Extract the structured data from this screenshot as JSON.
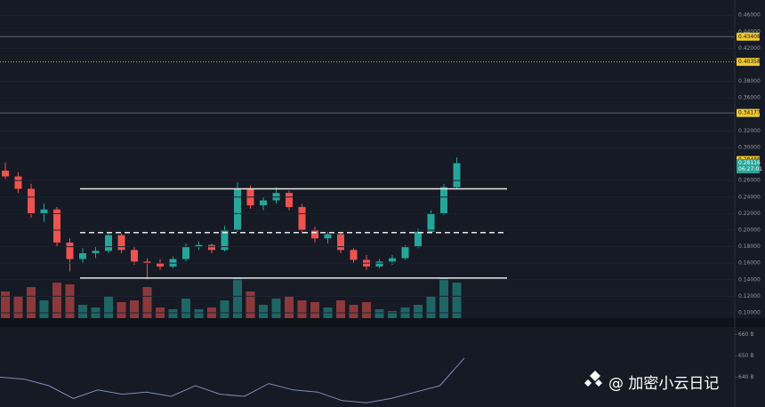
{
  "chart_data": {
    "type": "candlestick",
    "ylim": [
      0.0935,
      0.4785
    ],
    "yticks": [
      {
        "value": 0.46,
        "label": "0.46000"
      },
      {
        "value": 0.44,
        "label": "0.44000"
      },
      {
        "value": 0.42,
        "label": "0.42000"
      },
      {
        "value": 0.38,
        "label": "0.38000"
      },
      {
        "value": 0.36,
        "label": "0.36000"
      },
      {
        "value": 0.32,
        "label": "0.32000"
      },
      {
        "value": 0.3,
        "label": "0.30000"
      },
      {
        "value": 0.26,
        "label": "0.26000"
      },
      {
        "value": 0.24,
        "label": "0.24000"
      },
      {
        "value": 0.22,
        "label": "0.22000"
      },
      {
        "value": 0.2,
        "label": "0.20000"
      },
      {
        "value": 0.18,
        "label": "0.18000"
      },
      {
        "value": 0.16,
        "label": "0.16000"
      },
      {
        "value": 0.14,
        "label": "0.14000"
      },
      {
        "value": 0.12,
        "label": "0.12000"
      },
      {
        "value": 0.1,
        "label": "0.10000"
      }
    ],
    "grid": true,
    "up_color": "#26a69a",
    "down_color": "#ef5350",
    "open": [
      0.272,
      0.265,
      0.25,
      0.22,
      0.225,
      0.185,
      0.165,
      0.172,
      0.175,
      0.194,
      0.176,
      0.162,
      0.16,
      0.156,
      0.165,
      0.18,
      0.182,
      0.176,
      0.2,
      0.25,
      0.23,
      0.236,
      0.245,
      0.228,
      0.2,
      0.19,
      0.195,
      0.176,
      0.164,
      0.156,
      0.162,
      0.166,
      0.18,
      0.198,
      0.22,
      0.252
    ],
    "high": [
      0.282,
      0.27,
      0.256,
      0.232,
      0.228,
      0.19,
      0.178,
      0.18,
      0.198,
      0.196,
      0.18,
      0.166,
      0.165,
      0.168,
      0.184,
      0.186,
      0.184,
      0.205,
      0.258,
      0.254,
      0.24,
      0.252,
      0.248,
      0.232,
      0.204,
      0.198,
      0.197,
      0.178,
      0.17,
      0.165,
      0.17,
      0.182,
      0.202,
      0.224,
      0.256,
      0.288
    ],
    "low": [
      0.262,
      0.245,
      0.215,
      0.21,
      0.18,
      0.15,
      0.16,
      0.166,
      0.172,
      0.172,
      0.158,
      0.14,
      0.152,
      0.154,
      0.162,
      0.176,
      0.172,
      0.174,
      0.198,
      0.226,
      0.224,
      0.232,
      0.224,
      0.196,
      0.185,
      0.184,
      0.172,
      0.16,
      0.152,
      0.154,
      0.158,
      0.164,
      0.178,
      0.196,
      0.218,
      0.25
    ],
    "close": [
      0.265,
      0.25,
      0.22,
      0.225,
      0.185,
      0.165,
      0.172,
      0.175,
      0.194,
      0.176,
      0.162,
      0.16,
      0.156,
      0.165,
      0.18,
      0.182,
      0.176,
      0.2,
      0.25,
      0.23,
      0.236,
      0.245,
      0.228,
      0.2,
      0.19,
      0.195,
      0.176,
      0.164,
      0.156,
      0.162,
      0.166,
      0.18,
      0.198,
      0.22,
      0.252,
      0.281
    ],
    "volume": [
      30,
      25,
      35,
      20,
      40,
      38,
      15,
      12,
      25,
      18,
      20,
      35,
      12,
      10,
      22,
      10,
      12,
      20,
      45,
      30,
      15,
      22,
      25,
      20,
      18,
      12,
      20,
      15,
      18,
      10,
      8,
      12,
      15,
      25,
      45,
      40
    ],
    "levels": [
      {
        "value": 0.25,
        "style": "solid"
      },
      {
        "value": 0.197,
        "style": "dashed"
      },
      {
        "value": 0.142,
        "style": "solid"
      }
    ],
    "price_lines": [
      {
        "value": 0.43408,
        "style": "solid"
      },
      {
        "value": 0.40358,
        "style": "dotted"
      },
      {
        "value": 0.34177,
        "style": "solid"
      },
      {
        "value": 0.28485,
        "style": "none"
      }
    ],
    "last_price": 0.28116,
    "countdown": "06:27:01",
    "indicator": {
      "ylim": [
        626,
        666
      ],
      "yticks": [
        {
          "value": 660,
          "label": "660 B"
        },
        {
          "value": 650,
          "label": "650 B"
        },
        {
          "value": 640,
          "label": "640 B"
        }
      ],
      "values": [
        640,
        639,
        636,
        630,
        634,
        632,
        633,
        631,
        636,
        632,
        631,
        637,
        634,
        633,
        629,
        628,
        630,
        633,
        636,
        649
      ],
      "color": "#7b8db8"
    },
    "watermark": "@ 加密小云日记"
  }
}
